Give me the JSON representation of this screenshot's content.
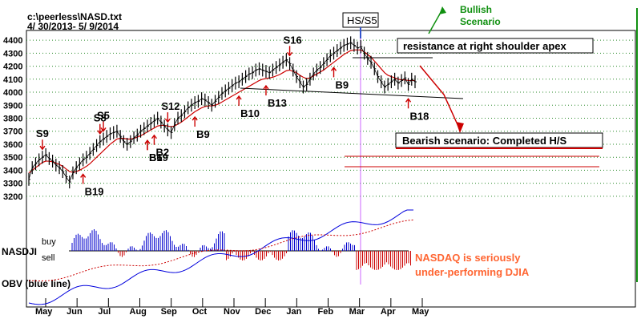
{
  "header": {
    "file": "c:\\peerless\\NASD.txt",
    "range": "4/ 30/2013- 5/ 9/2014"
  },
  "chart_data": {
    "type": "line",
    "series": [
      {
        "name": "NASDAQ",
        "values": [
          3330,
          3420,
          3450,
          3480,
          3500,
          3520,
          3490,
          3470,
          3440,
          3420,
          3390,
          3350,
          3310,
          3380,
          3420,
          3450,
          3480,
          3500,
          3530,
          3560,
          3590,
          3620,
          3640,
          3660,
          3680,
          3690,
          3700,
          3660,
          3620,
          3600,
          3620,
          3650,
          3670,
          3700,
          3720,
          3740,
          3760,
          3780,
          3800,
          3770,
          3740,
          3710,
          3690,
          3750,
          3800,
          3820,
          3850,
          3880,
          3900,
          3920,
          3930,
          3950,
          3940,
          3920,
          3900,
          3930,
          3960,
          3990,
          4010,
          4030,
          4050,
          4070,
          4080,
          4100,
          4120,
          4140,
          4150,
          4170,
          4180,
          4170,
          4160,
          4150,
          4170,
          4190,
          4210,
          4230,
          4250,
          4220,
          4170,
          4120,
          4080,
          4040,
          4060,
          4100,
          4140,
          4170,
          4190,
          4220,
          4250,
          4280,
          4300,
          4320,
          4340,
          4360,
          4370,
          4380,
          4360,
          4340,
          4350,
          4300,
          4260,
          4230,
          4180,
          4120,
          4080,
          4040,
          4060,
          4080,
          4100,
          4070,
          4090,
          4110,
          4060,
          4100,
          4080
        ]
      },
      {
        "name": "moving average",
        "values": [
          3380,
          3400,
          3420,
          3440,
          3460,
          3470,
          3470,
          3465,
          3455,
          3445,
          3430,
          3410,
          3390,
          3385,
          3390,
          3400,
          3415,
          3430,
          3450,
          3475,
          3500,
          3525,
          3550,
          3575,
          3600,
          3620,
          3640,
          3645,
          3645,
          3640,
          3640,
          3645,
          3655,
          3665,
          3680,
          3695,
          3710,
          3725,
          3740,
          3745,
          3745,
          3740,
          3735,
          3740,
          3755,
          3770,
          3790,
          3810,
          3830,
          3850,
          3865,
          3880,
          3890,
          3895,
          3895,
          3900,
          3910,
          3925,
          3940,
          3955,
          3970,
          3985,
          4000,
          4015,
          4030,
          4045,
          4060,
          4075,
          4090,
          4100,
          4105,
          4110,
          4115,
          4125,
          4135,
          4150,
          4165,
          4170,
          4160,
          4150,
          4130,
          4115,
          4105,
          4110,
          4125,
          4140,
          4155,
          4170,
          4190,
          4210,
          4230,
          4250,
          4270,
          4290,
          4305,
          4320,
          4325,
          4325,
          4325,
          4310,
          4290,
          4270,
          4240,
          4210,
          4180,
          4150,
          4130,
          4120,
          4110,
          4100,
          4095,
          4095,
          4090,
          4090,
          4090
        ]
      }
    ],
    "xlabels": [
      "May",
      "Jun",
      "Jul",
      "Aug",
      "Sep",
      "Oct",
      "Nov",
      "Dec",
      "Jan",
      "Feb",
      "Mar",
      "Apr",
      "May"
    ],
    "yticks": [
      3200,
      3300,
      3400,
      3500,
      3600,
      3700,
      3800,
      3900,
      4000,
      4100,
      4200,
      4300,
      4400
    ],
    "ylim": [
      3150,
      4450
    ],
    "grid": true,
    "signals": [
      {
        "label": "S9",
        "dir": "sell",
        "i": 4
      },
      {
        "label": "S8",
        "dir": "sell",
        "i": 21
      },
      {
        "label": "S5",
        "dir": "sell",
        "i": 22
      },
      {
        "label": "S12",
        "dir": "sell",
        "i": 41
      },
      {
        "label": "S16",
        "dir": "sell",
        "i": 77
      },
      {
        "label": "B19",
        "dir": "buy",
        "i": 16
      },
      {
        "label": "B6",
        "dir": "buy",
        "i": 35
      },
      {
        "label": "B2",
        "dir": "buy",
        "i": 37
      },
      {
        "label": "B19",
        "dir": "buy",
        "i": 35
      },
      {
        "label": "B9",
        "dir": "buy",
        "i": 49
      },
      {
        "label": "B10",
        "dir": "buy",
        "i": 62
      },
      {
        "label": "B13",
        "dir": "buy",
        "i": 70
      },
      {
        "label": "B9",
        "dir": "buy",
        "i": 90
      },
      {
        "label": "B18",
        "dir": "buy",
        "i": 112
      }
    ],
    "annotations": {
      "hs": "HS/S5",
      "bullish": [
        "Bullish",
        "Scenario"
      ],
      "resistance": "resistance at right shoulder apex",
      "bearish": "Bearish scenario: Completed H/S",
      "underperf": [
        "NASDAQ is seriously",
        "under-performing DJIA"
      ]
    },
    "indicator": {
      "label": "NASDJI",
      "buy": "buy",
      "sell": "sell",
      "obv_label": "OBV (blue line)"
    },
    "colors": {
      "price": "#000000",
      "ma": "#cc0000",
      "signal": "#cc0000",
      "bullish": "#109010",
      "underperf": "#ff6633",
      "indicator_bar": "#0000cc",
      "indicator_neg": "#cc0000",
      "obv": "#0000dd",
      "marker": "#cc66ff"
    }
  }
}
